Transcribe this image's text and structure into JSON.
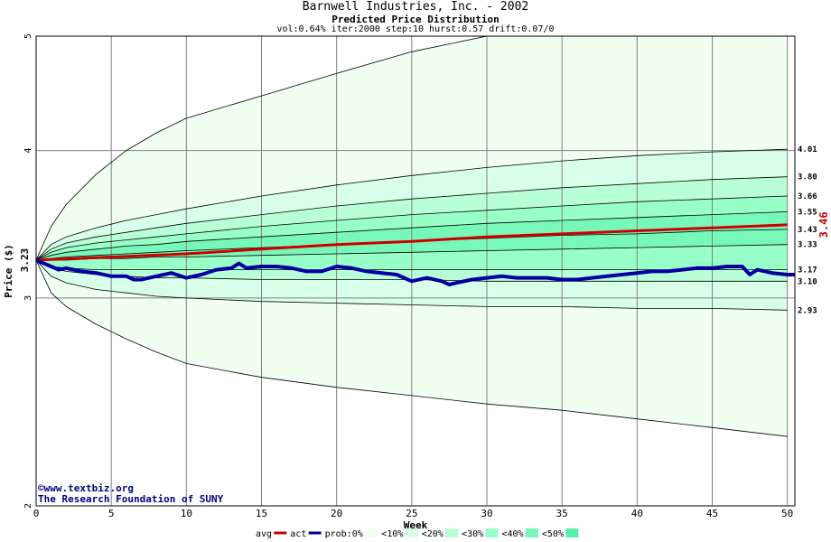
{
  "header": {
    "title": "Barnwell Industries, Inc. - 2002",
    "subtitle": "Predicted Price Distribution",
    "params": "vol:0.64% iter:2000 step:10 hurst:0.57 drift:0.07/0"
  },
  "credits": {
    "copyright_symbol": "©",
    "line1": "www.textbiz.org",
    "line2": "The Research Foundation of SUNY"
  },
  "chart_data": {
    "type": "area",
    "title": "Barnwell Industries, Inc. - 2002",
    "subtitle": "Predicted Price Distribution",
    "xlabel": "Week",
    "ylabel": "Price ($)",
    "y_scale": "log",
    "xlim": [
      0,
      50.5
    ],
    "ylim": [
      2,
      5
    ],
    "grid": true,
    "x_ticks": [
      0,
      5,
      10,
      15,
      20,
      25,
      30,
      35,
      40,
      45,
      50
    ],
    "y_ticks": [
      2,
      3,
      4,
      5
    ],
    "start_price": 3.23,
    "start_price_label": "3.23",
    "final_avg": 3.46,
    "final_avg_label": "3.46",
    "colors": {
      "band_outer": "#f0fff0",
      "band_10": "#d8ffe8",
      "band_20": "#b8ffd8",
      "band_30": "#98ffc8",
      "band_40": "#78f8b8",
      "avg": "#cc0000",
      "act": "#0000a0",
      "avg_label": "#cc0000",
      "credit": "#000080"
    },
    "percentile_weeks": [
      0,
      1,
      2,
      4,
      6,
      8,
      10,
      15,
      20,
      25,
      30,
      35,
      40,
      45,
      50
    ],
    "percentile_series": [
      {
        "prob": "p0",
        "end_label": "2.93",
        "values": [
          3.23,
          3.13,
          3.09,
          3.05,
          3.03,
          3.01,
          3.0,
          2.98,
          2.97,
          2.96,
          2.95,
          2.95,
          2.94,
          2.94,
          2.93
        ]
      },
      {
        "prob": "p10",
        "end_label": "3.10",
        "values": [
          3.23,
          3.18,
          3.16,
          3.14,
          3.13,
          3.12,
          3.12,
          3.11,
          3.11,
          3.11,
          3.1,
          3.1,
          3.1,
          3.1,
          3.1
        ]
      },
      {
        "prob": "p20",
        "end_label": "3.17",
        "values": [
          3.23,
          3.19,
          3.18,
          3.17,
          3.17,
          3.17,
          3.17,
          3.17,
          3.17,
          3.17,
          3.17,
          3.17,
          3.17,
          3.17,
          3.17
        ]
      },
      {
        "prob": "p30",
        "end_label": "3.33",
        "values": [
          3.23,
          3.23,
          3.23,
          3.24,
          3.24,
          3.25,
          3.25,
          3.26,
          3.27,
          3.28,
          3.29,
          3.3,
          3.31,
          3.32,
          3.33
        ]
      },
      {
        "prob": "p40",
        "end_label": "3.43",
        "values": [
          3.23,
          3.24,
          3.25,
          3.26,
          3.27,
          3.28,
          3.29,
          3.31,
          3.33,
          3.35,
          3.37,
          3.39,
          3.4,
          3.42,
          3.43
        ]
      },
      {
        "prob": "p50",
        "end_label": "3.55",
        "values": [
          3.23,
          3.26,
          3.28,
          3.3,
          3.32,
          3.33,
          3.35,
          3.38,
          3.41,
          3.44,
          3.47,
          3.49,
          3.51,
          3.53,
          3.55
        ]
      },
      {
        "prob": "p60",
        "end_label": "3.66",
        "values": [
          3.23,
          3.28,
          3.31,
          3.34,
          3.36,
          3.38,
          3.4,
          3.45,
          3.49,
          3.53,
          3.56,
          3.59,
          3.62,
          3.64,
          3.66
        ]
      },
      {
        "prob": "p70",
        "end_label": "3.80",
        "values": [
          3.23,
          3.3,
          3.34,
          3.38,
          3.41,
          3.44,
          3.47,
          3.53,
          3.59,
          3.64,
          3.68,
          3.72,
          3.75,
          3.78,
          3.8
        ]
      },
      {
        "prob": "p80",
        "end_label": "4.01",
        "values": [
          3.23,
          3.33,
          3.38,
          3.44,
          3.49,
          3.53,
          3.57,
          3.66,
          3.74,
          3.81,
          3.87,
          3.92,
          3.96,
          3.99,
          4.01
        ]
      },
      {
        "prob": "p100",
        "end_label": "",
        "values": [
          3.23,
          3.45,
          3.6,
          3.82,
          4.0,
          4.14,
          4.26,
          4.45,
          4.65,
          4.85,
          5.05,
          5.25,
          5.45,
          5.65,
          5.85
        ]
      }
    ],
    "lower_bound": {
      "weeks": [
        0,
        1,
        2,
        4,
        6,
        8,
        10,
        15,
        20,
        25,
        30,
        35,
        40,
        45,
        50
      ],
      "values": [
        3.23,
        3.03,
        2.95,
        2.85,
        2.77,
        2.7,
        2.64,
        2.57,
        2.52,
        2.48,
        2.44,
        2.41,
        2.37,
        2.33,
        2.29
      ]
    },
    "series": [
      {
        "name": "avg",
        "weeks": [
          0,
          5,
          10,
          15,
          20,
          25,
          30,
          35,
          40,
          45,
          50
        ],
        "values": [
          3.23,
          3.25,
          3.27,
          3.3,
          3.33,
          3.35,
          3.38,
          3.4,
          3.42,
          3.44,
          3.46
        ]
      },
      {
        "name": "act",
        "weeks": [
          0,
          1,
          1.5,
          2,
          3,
          4,
          5,
          6,
          6.5,
          7,
          8,
          9,
          10,
          11,
          12,
          13,
          13.5,
          14,
          15,
          16,
          17,
          18,
          19,
          20,
          21,
          22,
          23,
          24,
          25,
          26,
          27,
          27.5,
          28,
          29,
          30,
          31,
          32,
          33,
          34,
          35,
          36,
          37,
          38,
          39,
          40,
          41,
          42,
          43,
          44,
          45,
          46,
          47,
          47.5,
          48,
          49,
          50,
          50.5
        ],
        "values": [
          3.23,
          3.19,
          3.17,
          3.18,
          3.16,
          3.15,
          3.13,
          3.13,
          3.11,
          3.11,
          3.13,
          3.15,
          3.12,
          3.14,
          3.17,
          3.18,
          3.21,
          3.18,
          3.19,
          3.19,
          3.18,
          3.16,
          3.16,
          3.19,
          3.18,
          3.16,
          3.15,
          3.14,
          3.1,
          3.12,
          3.1,
          3.08,
          3.09,
          3.11,
          3.12,
          3.13,
          3.12,
          3.12,
          3.12,
          3.11,
          3.11,
          3.12,
          3.13,
          3.14,
          3.15,
          3.16,
          3.16,
          3.17,
          3.18,
          3.18,
          3.19,
          3.19,
          3.14,
          3.17,
          3.15,
          3.14,
          3.14
        ]
      }
    ],
    "legend": [
      {
        "label": "avg",
        "kind": "line",
        "color": "#cc0000"
      },
      {
        "label": "act",
        "kind": "line",
        "color": "#0000a0"
      },
      {
        "label": "prob:0%",
        "kind": "swatch",
        "color": "#f0fff0"
      },
      {
        "label": "<10%",
        "kind": "swatch",
        "color": "#d8ffe8"
      },
      {
        "label": "<20%",
        "kind": "swatch",
        "color": "#b8ffd8"
      },
      {
        "label": "<30%",
        "kind": "swatch",
        "color": "#98ffc8"
      },
      {
        "label": "<40%",
        "kind": "swatch",
        "color": "#78f8b8"
      },
      {
        "label": "<50%",
        "kind": "swatch",
        "color": "#58f0a8"
      }
    ],
    "legend_placement": "bottom"
  }
}
